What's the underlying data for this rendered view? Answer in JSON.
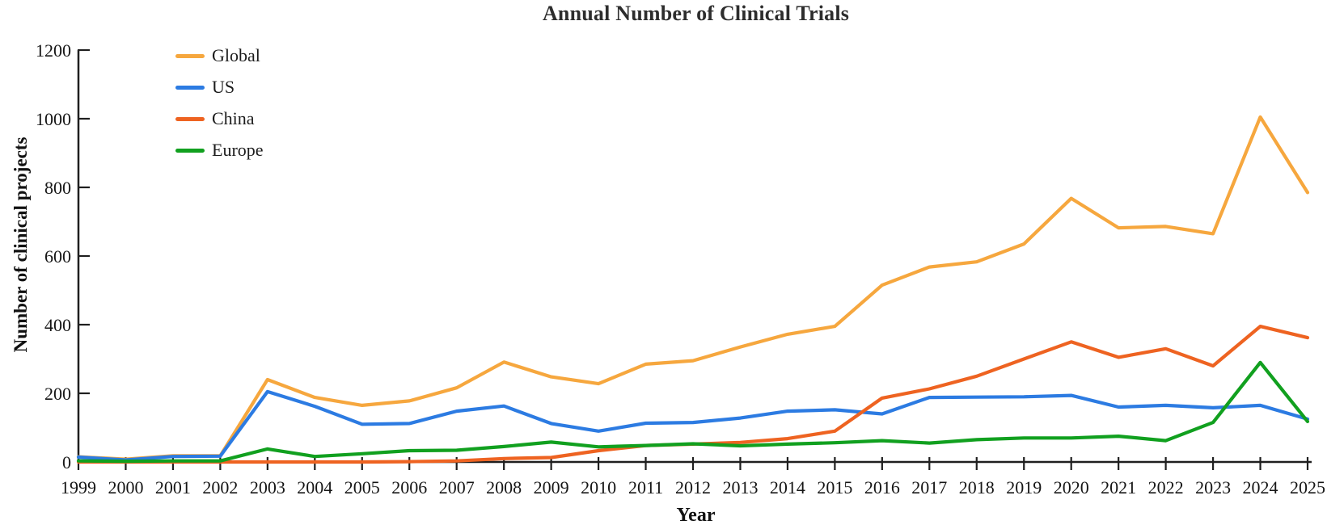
{
  "chart_data": {
    "type": "line",
    "title": "Annual Number of Clinical Trials",
    "xlabel": "Year",
    "ylabel": "Number of clinical projects",
    "ylim": [
      0,
      1200
    ],
    "yticks": [
      0,
      200,
      400,
      600,
      800,
      1000,
      1200
    ],
    "grid": false,
    "legend_position": "top-left",
    "axis_color": "#1f1f1f",
    "categories": [
      "1999",
      "2000",
      "2001",
      "2002",
      "2003",
      "2004",
      "2005",
      "2006",
      "2007",
      "2008",
      "2009",
      "2010",
      "2011",
      "2012",
      "2013",
      "2014",
      "2015",
      "2016",
      "2017",
      "2018",
      "2019",
      "2020",
      "2021",
      "2022",
      "2023",
      "2024",
      "2025"
    ],
    "series": [
      {
        "name": "Global",
        "color": "#F6A73E",
        "values": [
          15,
          8,
          18,
          18,
          240,
          188,
          165,
          178,
          216,
          291,
          248,
          228,
          285,
          295,
          335,
          372,
          395,
          515,
          568,
          583,
          635,
          768,
          682,
          686,
          665,
          1005,
          785
        ]
      },
      {
        "name": "US",
        "color": "#2C7BE2",
        "values": [
          14,
          6,
          16,
          17,
          205,
          162,
          110,
          112,
          148,
          163,
          112,
          90,
          113,
          115,
          128,
          148,
          152,
          140,
          188,
          189,
          190,
          194,
          160,
          165,
          158,
          165,
          125
        ]
      },
      {
        "name": "China",
        "color": "#EE6321",
        "values": [
          0,
          0,
          0,
          0,
          0,
          0,
          0,
          1,
          3,
          10,
          13,
          33,
          48,
          52,
          57,
          68,
          90,
          186,
          213,
          250,
          300,
          350,
          305,
          330,
          280,
          395,
          362
        ]
      },
      {
        "name": "Europe",
        "color": "#11A01F",
        "values": [
          3,
          2,
          3,
          3,
          38,
          16,
          24,
          33,
          34,
          45,
          58,
          44,
          48,
          53,
          47,
          52,
          56,
          62,
          55,
          65,
          70,
          70,
          75,
          62,
          115,
          290,
          118
        ]
      }
    ]
  }
}
